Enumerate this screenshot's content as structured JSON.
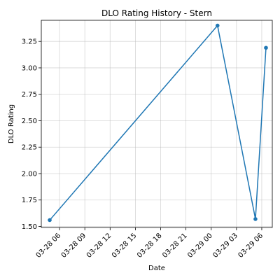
{
  "chart_data": {
    "type": "line",
    "title": "DLO Rating History - Stern",
    "xlabel": "Date",
    "ylabel": "DLO Rating",
    "grid": true,
    "legend": "none",
    "xlim": [
      "2025-03-28 03:50",
      "2025-03-29 07:15"
    ],
    "ylim": [
      1.49,
      3.45
    ],
    "x_ticks": [
      "2025-03-28 06:00",
      "2025-03-28 09:00",
      "2025-03-28 12:00",
      "2025-03-28 15:00",
      "2025-03-28 18:00",
      "2025-03-28 21:00",
      "2025-03-29 00:00",
      "2025-03-29 03:00",
      "2025-03-29 06:00"
    ],
    "x_tick_labels": [
      "03-28 06",
      "03-28 09",
      "03-28 12",
      "03-28 15",
      "03-28 18",
      "03-28 21",
      "03-29 00",
      "03-29 03",
      "03-29 06"
    ],
    "y_ticks": [
      1.5,
      1.75,
      2.0,
      2.25,
      2.5,
      2.75,
      3.0,
      3.25
    ],
    "y_tick_labels": [
      "1.50",
      "1.75",
      "2.00",
      "2.25",
      "2.50",
      "2.75",
      "3.00",
      "3.25"
    ],
    "series": [
      {
        "color": "#1f77b4",
        "x": [
          "2025-03-28 04:50",
          "2025-03-29 00:45",
          "2025-03-29 05:15",
          "2025-03-29 06:30"
        ],
        "y": [
          1.56,
          3.4,
          1.57,
          3.19
        ]
      }
    ]
  }
}
